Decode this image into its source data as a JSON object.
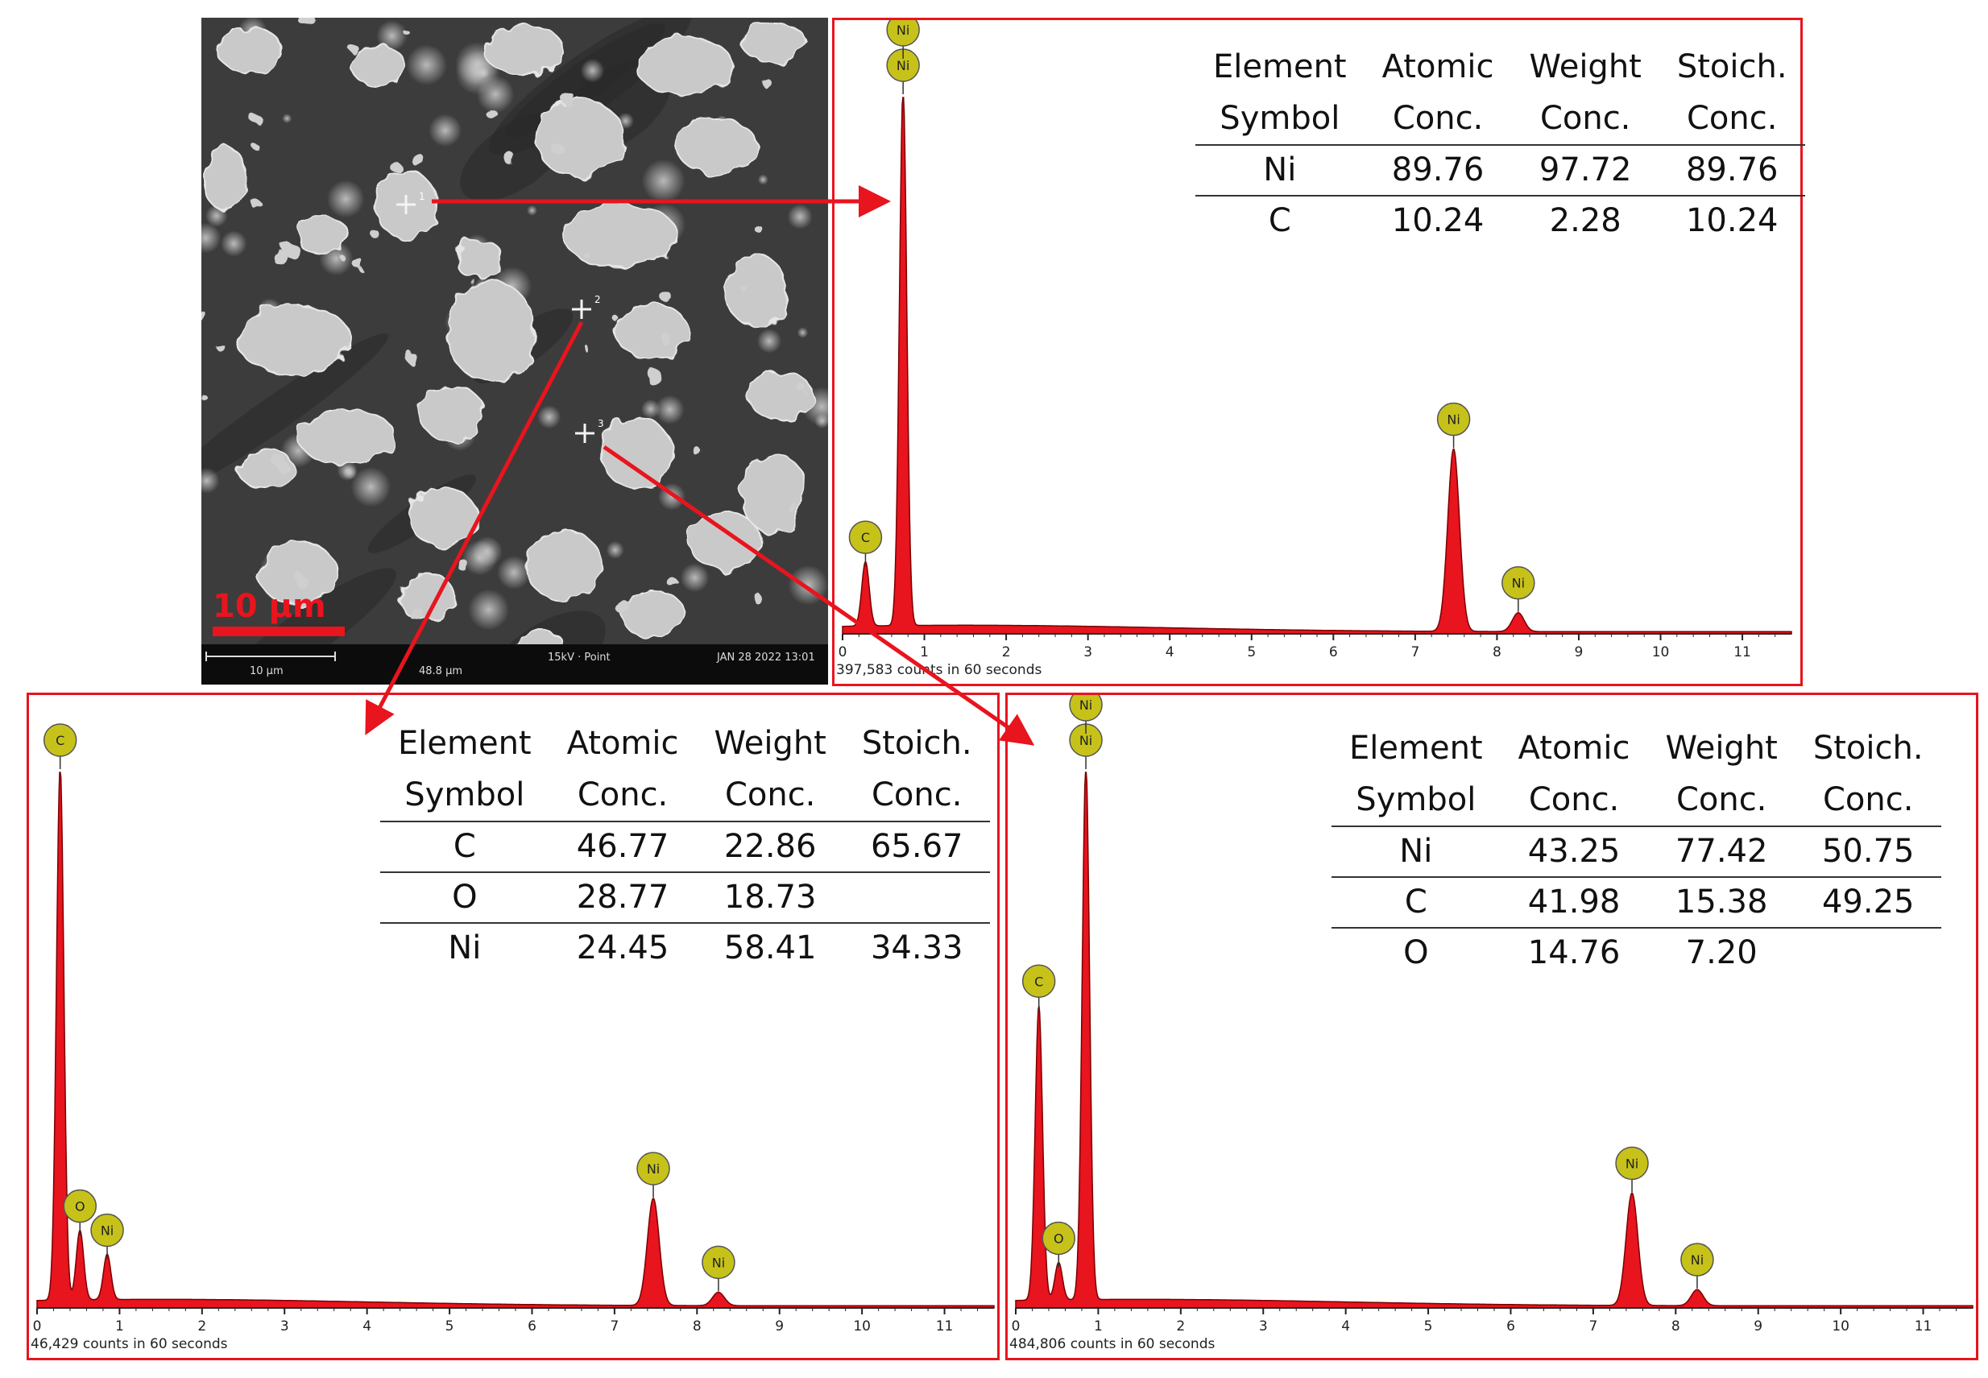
{
  "micrograph": {
    "scale_label": "10 µm",
    "bar_scale": "10 µm",
    "bar_field": "48.8 µm",
    "bar_mode": "15kV · Point",
    "bar_date": "JAN 28 2022 13:01",
    "points": [
      "1",
      "2",
      "3"
    ]
  },
  "colors": {
    "border": "#e8141e",
    "spectrum": "#e8141e",
    "peak_label": "#c7c21a"
  },
  "chart_data": [
    {
      "type": "line",
      "name": "point-1",
      "counts_label": "397,583 counts in 60 seconds",
      "xlim": [
        0,
        11.6
      ],
      "x_ticks": [
        "0",
        "1",
        "2",
        "3",
        "4",
        "5",
        "6",
        "7",
        "8",
        "9",
        "10",
        "11"
      ],
      "peaks": [
        {
          "element": "C",
          "x": 0.28,
          "y": 0.12
        },
        {
          "element": "Ni",
          "x": 0.74,
          "y": 1.0,
          "stacked": true
        },
        {
          "element": "Ni",
          "x": 7.47,
          "y": 0.34
        },
        {
          "element": "Ni",
          "x": 8.26,
          "y": 0.035
        }
      ],
      "table": {
        "headers": [
          [
            "Element",
            "Atomic",
            "Weight",
            "Stoich."
          ],
          [
            "Symbol",
            "Conc.",
            "Conc.",
            "Conc."
          ]
        ],
        "rows": [
          [
            "Ni",
            "89.76",
            "97.72",
            "89.76"
          ],
          [
            "C",
            "10.24",
            "2.28",
            "10.24"
          ]
        ]
      }
    },
    {
      "type": "line",
      "name": "point-2",
      "counts_label": "46,429 counts in 60 seconds",
      "xlim": [
        0,
        11.6
      ],
      "x_ticks": [
        "0",
        "1",
        "2",
        "3",
        "4",
        "5",
        "6",
        "7",
        "8",
        "9",
        "10",
        "11"
      ],
      "peaks": [
        {
          "element": "C",
          "x": 0.28,
          "y": 1.0
        },
        {
          "element": "O",
          "x": 0.52,
          "y": 0.13
        },
        {
          "element": "Ni",
          "x": 0.85,
          "y": 0.085
        },
        {
          "element": "Ni",
          "x": 7.47,
          "y": 0.2
        },
        {
          "element": "Ni",
          "x": 8.26,
          "y": 0.025
        }
      ],
      "table": {
        "headers": [
          [
            "Element",
            "Atomic",
            "Weight",
            "Stoich."
          ],
          [
            "Symbol",
            "Conc.",
            "Conc.",
            "Conc."
          ]
        ],
        "rows": [
          [
            "C",
            "46.77",
            "22.86",
            "65.67"
          ],
          [
            "O",
            "28.77",
            "18.73",
            ""
          ],
          [
            "Ni",
            "24.45",
            "58.41",
            "34.33"
          ]
        ]
      }
    },
    {
      "type": "line",
      "name": "point-3",
      "counts_label": "484,806 counts in 60 seconds",
      "xlim": [
        0,
        11.6
      ],
      "x_ticks": [
        "0",
        "1",
        "2",
        "3",
        "4",
        "5",
        "6",
        "7",
        "8",
        "9",
        "10",
        "11"
      ],
      "peaks": [
        {
          "element": "C",
          "x": 0.28,
          "y": 0.55
        },
        {
          "element": "O",
          "x": 0.52,
          "y": 0.07
        },
        {
          "element": "Ni",
          "x": 0.85,
          "y": 1.0,
          "stacked": true
        },
        {
          "element": "Ni",
          "x": 7.47,
          "y": 0.21
        },
        {
          "element": "Ni",
          "x": 8.26,
          "y": 0.03
        }
      ],
      "table": {
        "headers": [
          [
            "Element",
            "Atomic",
            "Weight",
            "Stoich."
          ],
          [
            "Symbol",
            "Conc.",
            "Conc.",
            "Conc."
          ]
        ],
        "rows": [
          [
            "Ni",
            "43.25",
            "77.42",
            "50.75"
          ],
          [
            "C",
            "41.98",
            "15.38",
            "49.25"
          ],
          [
            "O",
            "14.76",
            "7.20",
            ""
          ]
        ]
      }
    }
  ]
}
